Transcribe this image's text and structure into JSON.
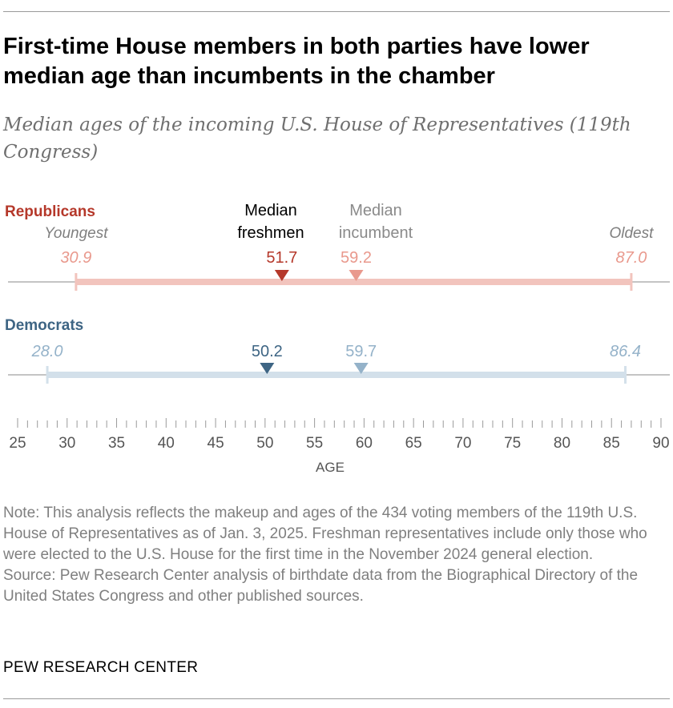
{
  "title": "First-time House members in both parties have lower median age than incumbents in the chamber",
  "subtitle": "Median ages of the incoming U.S. House of Representatives (119th Congress)",
  "chart_data": {
    "type": "dot-range",
    "xlabel": "AGE",
    "xlim": [
      25,
      90
    ],
    "ticks": [
      25,
      30,
      35,
      40,
      45,
      50,
      55,
      60,
      65,
      70,
      75,
      80,
      85,
      90
    ],
    "labels": {
      "youngest": "Youngest",
      "oldest": "Oldest",
      "median_freshmen": "Median freshmen",
      "median_incumbent": "Median incumbent"
    },
    "series": [
      {
        "name": "Republicans",
        "color": "#b5382a",
        "light_color": "#e9998d",
        "range_color": "#f2c4bd",
        "youngest": 30.9,
        "oldest": 87.0,
        "median_freshmen": 51.7,
        "median_incumbent": 59.2
      },
      {
        "name": "Democrats",
        "color": "#3e6584",
        "light_color": "#94b2c9",
        "range_color": "#d3e0ea",
        "youngest": 28.0,
        "oldest": 86.4,
        "median_freshmen": 50.2,
        "median_incumbent": 59.7
      }
    ]
  },
  "notes": {
    "note": "Note: This analysis reflects the makeup and ages of the 434 voting members of the 119th U.S. House of Representatives as of Jan. 3, 2025. Freshman representatives include only those who were elected to the U.S. House for the first time in the November 2024 general election.",
    "source": "Source: Pew Research Center analysis of birthdate data from the Biographical Directory of the United States Congress and other published sources."
  },
  "brand": "PEW RESEARCH CENTER"
}
